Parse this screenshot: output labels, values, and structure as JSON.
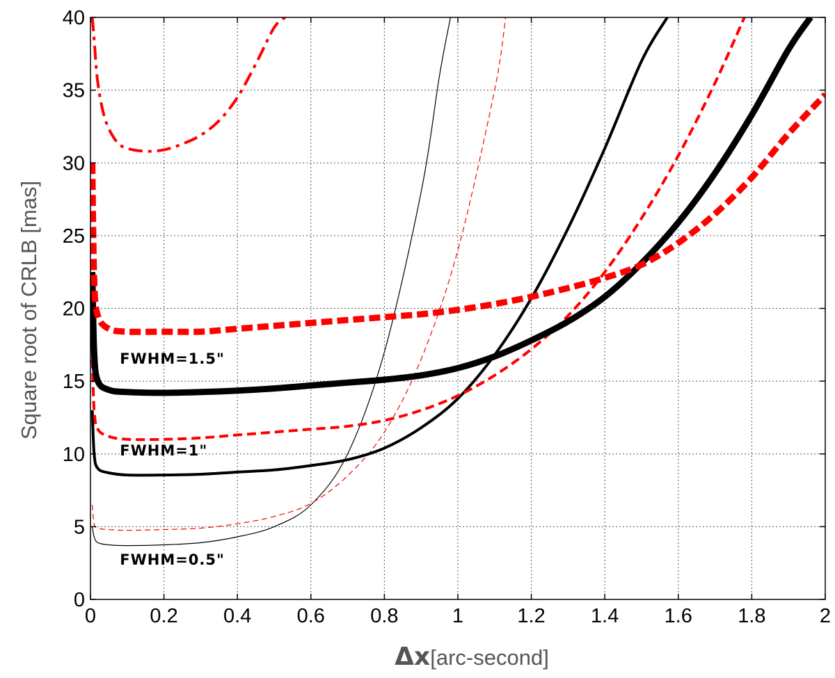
{
  "chart_data": {
    "type": "line",
    "title": "",
    "xlabel_symbol": "Δx",
    "xlabel_unit": "[arc-second]",
    "ylabel": "Square root of CRLB [mas]",
    "xlim": [
      0,
      2
    ],
    "ylim": [
      0,
      40
    ],
    "grid": true,
    "xticks": [
      0,
      0.2,
      0.4,
      0.6,
      0.8,
      1,
      1.2,
      1.4,
      1.6,
      1.8,
      2
    ],
    "xtick_labels": [
      "0",
      "0.2",
      "0.4",
      "0.6",
      "0.8",
      "1",
      "1.2",
      "1.4",
      "1.6",
      "1.8",
      "2"
    ],
    "yticks": [
      0,
      5,
      10,
      15,
      20,
      25,
      30,
      35,
      40
    ],
    "ytick_labels": [
      "0",
      "5",
      "10",
      "15",
      "20",
      "25",
      "30",
      "35",
      "40"
    ],
    "annotations": [
      {
        "text": "FWHM=1.5\"",
        "x": 0.08,
        "y": 16.2
      },
      {
        "text": "FWHM=1\"",
        "x": 0.08,
        "y": 9.9
      },
      {
        "text": "FWHM=0.5\"",
        "x": 0.08,
        "y": 2.4
      }
    ],
    "series": [
      {
        "color": "#000000",
        "style": "solid",
        "weight": 1,
        "x": [
          0.005,
          0.01,
          0.02,
          0.05,
          0.1,
          0.2,
          0.3,
          0.4,
          0.5,
          0.6,
          0.7,
          0.8,
          0.9,
          0.95,
          0.98
        ],
        "y": [
          5.0,
          4.3,
          3.9,
          3.75,
          3.7,
          3.75,
          3.9,
          4.3,
          5.0,
          6.5,
          10.0,
          17.0,
          28.0,
          36.0,
          40.0
        ]
      },
      {
        "color": "#ff0000",
        "style": "dashed",
        "weight": 1,
        "x": [
          0.005,
          0.01,
          0.02,
          0.05,
          0.1,
          0.2,
          0.3,
          0.4,
          0.5,
          0.6,
          0.7,
          0.8,
          0.9,
          1.0,
          1.1,
          1.13
        ],
        "y": [
          6.5,
          5.2,
          4.9,
          4.8,
          4.75,
          4.8,
          4.9,
          5.2,
          5.7,
          6.6,
          8.5,
          11.5,
          16.5,
          24.0,
          35.0,
          40.0
        ]
      },
      {
        "color": "#000000",
        "style": "solid",
        "weight": 2,
        "x": [
          0.005,
          0.01,
          0.02,
          0.05,
          0.1,
          0.2,
          0.3,
          0.4,
          0.5,
          0.6,
          0.7,
          0.8,
          0.9,
          1.0,
          1.1,
          1.2,
          1.3,
          1.4,
          1.5,
          1.57
        ],
        "y": [
          13.0,
          10.0,
          9.0,
          8.7,
          8.55,
          8.55,
          8.6,
          8.75,
          8.9,
          9.2,
          9.6,
          10.4,
          11.8,
          13.8,
          16.8,
          20.7,
          25.5,
          31.0,
          37.0,
          40.0
        ]
      },
      {
        "color": "#ff0000",
        "style": "dashed",
        "weight": 2,
        "x": [
          0.005,
          0.01,
          0.02,
          0.05,
          0.1,
          0.2,
          0.3,
          0.4,
          0.5,
          0.6,
          0.7,
          0.8,
          0.9,
          1.0,
          1.1,
          1.2,
          1.3,
          1.4,
          1.5,
          1.6,
          1.7,
          1.78
        ],
        "y": [
          16.5,
          13.0,
          11.7,
          11.2,
          11.0,
          11.0,
          11.1,
          11.3,
          11.5,
          11.7,
          11.9,
          12.3,
          13.0,
          14.0,
          15.4,
          17.2,
          19.5,
          22.5,
          26.2,
          30.5,
          35.5,
          40.0
        ]
      },
      {
        "color": "#000000",
        "style": "solid",
        "weight": 3,
        "x": [
          0.005,
          0.01,
          0.02,
          0.05,
          0.1,
          0.2,
          0.3,
          0.4,
          0.5,
          0.6,
          0.7,
          0.8,
          0.9,
          1.0,
          1.1,
          1.2,
          1.3,
          1.4,
          1.5,
          1.6,
          1.7,
          1.8,
          1.9,
          1.96
        ],
        "y": [
          22.5,
          17.0,
          15.0,
          14.4,
          14.25,
          14.2,
          14.25,
          14.35,
          14.5,
          14.7,
          14.9,
          15.1,
          15.4,
          15.9,
          16.7,
          17.8,
          19.1,
          20.8,
          23.1,
          25.9,
          29.3,
          33.3,
          37.8,
          40.0
        ]
      },
      {
        "color": "#ff0000",
        "style": "dashed",
        "weight": 3,
        "x": [
          0.005,
          0.01,
          0.02,
          0.05,
          0.1,
          0.2,
          0.3,
          0.4,
          0.5,
          0.6,
          0.7,
          0.8,
          0.9,
          1.0,
          1.1,
          1.2,
          1.3,
          1.4,
          1.5,
          1.6,
          1.7,
          1.8,
          1.9,
          2.0
        ],
        "y": [
          30.0,
          22.0,
          19.5,
          18.6,
          18.4,
          18.4,
          18.4,
          18.6,
          18.8,
          19.0,
          19.2,
          19.4,
          19.6,
          19.9,
          20.3,
          20.8,
          21.4,
          22.1,
          23.0,
          24.5,
          26.5,
          29.0,
          32.0,
          34.7
        ]
      },
      {
        "color": "#ff0000",
        "style": "dashdot",
        "weight": 2,
        "x": [
          0.005,
          0.01,
          0.02,
          0.04,
          0.07,
          0.1,
          0.15,
          0.2,
          0.25,
          0.3,
          0.35,
          0.4,
          0.45,
          0.5,
          0.53
        ],
        "y": [
          40.0,
          38.5,
          35.5,
          33.0,
          31.5,
          31.0,
          30.8,
          30.9,
          31.3,
          31.9,
          32.9,
          34.5,
          36.8,
          39.3,
          40.0
        ]
      }
    ]
  }
}
